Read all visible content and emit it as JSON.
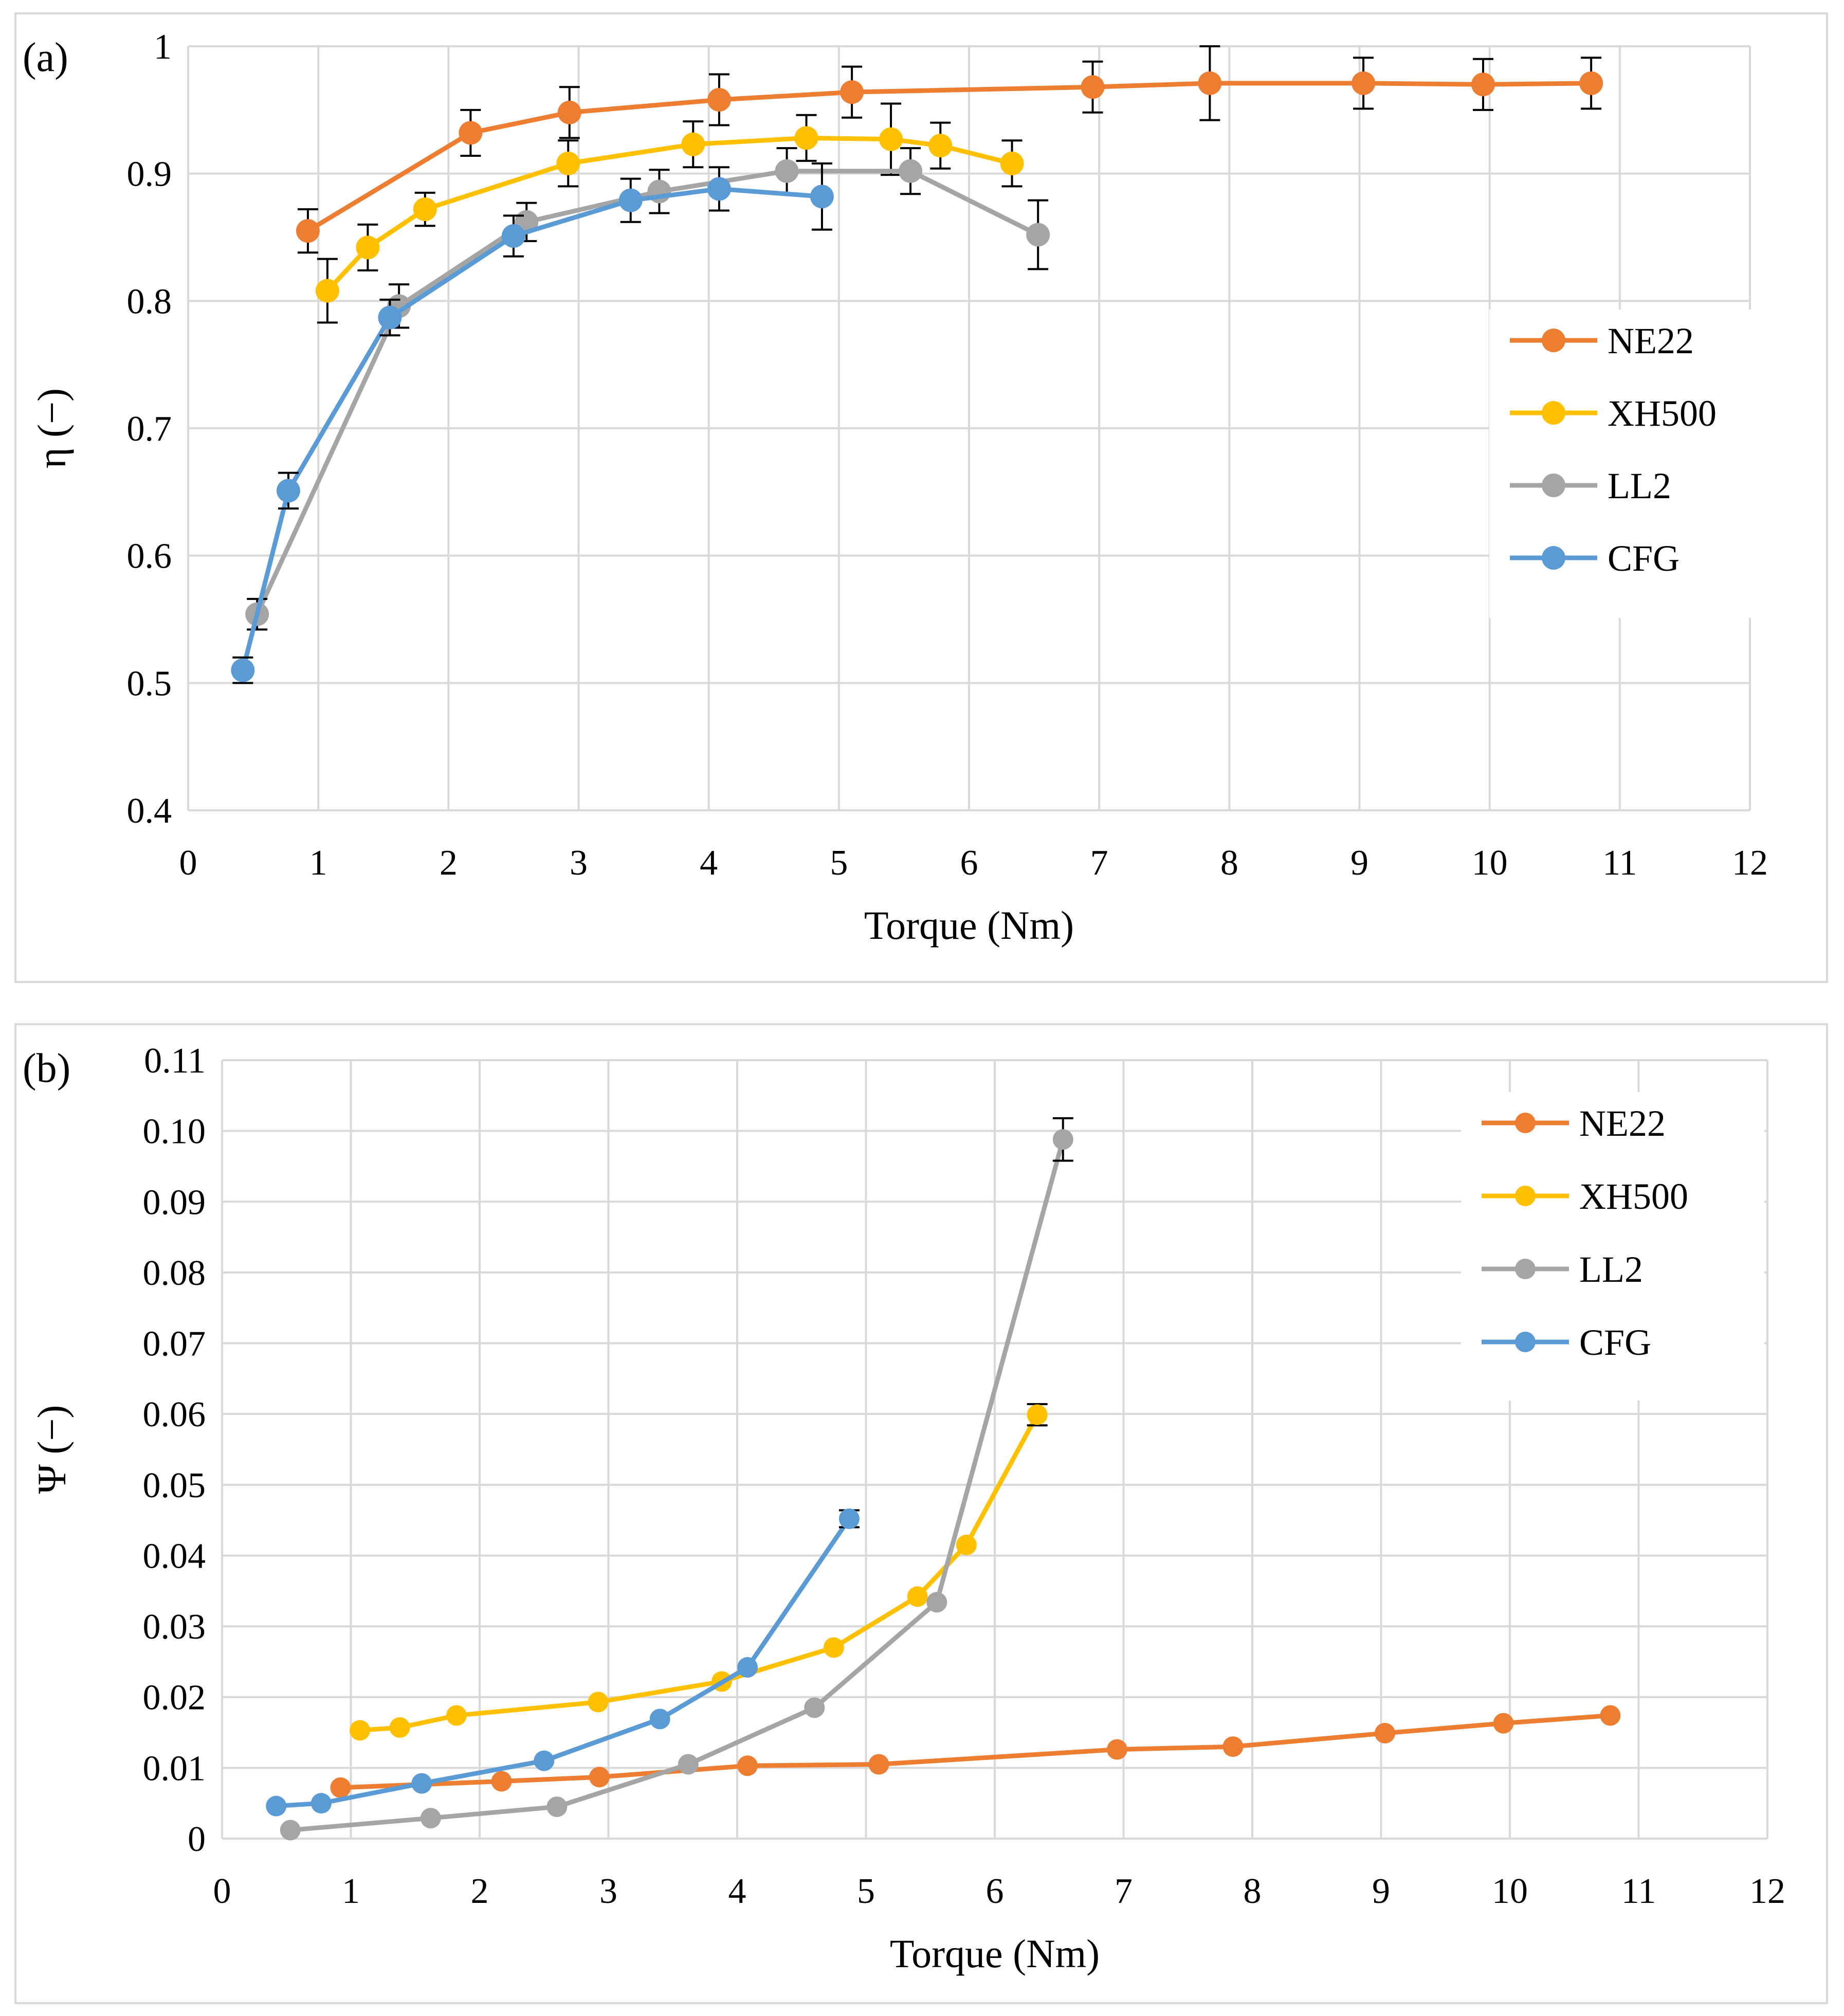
{
  "colors": {
    "NE22": "#ED7D31",
    "XH500": "#FFC000",
    "LL2": "#A5A5A5",
    "CFG": "#5B9BD5",
    "grid": "#d9d9d9"
  },
  "chart_data": [
    {
      "type": "line",
      "panel_label": "(a)",
      "title": "",
      "xlabel": "Torque (Nm)",
      "ylabel": "η (−)",
      "xlim": [
        0,
        12
      ],
      "ylim": [
        0.4,
        1
      ],
      "x_ticks": [
        "0",
        "1",
        "2",
        "3",
        "4",
        "5",
        "6",
        "7",
        "8",
        "9",
        "10",
        "11",
        "12"
      ],
      "y_ticks": [
        "0.4",
        "0.5",
        "0.6",
        "0.7",
        "0.8",
        "0.9",
        "1"
      ],
      "legend": [
        "NE22",
        "XH500",
        "LL2",
        "CFG"
      ],
      "series": [
        {
          "name": "NE22",
          "x": [
            0.92,
            2.17,
            2.93,
            4.08,
            5.1,
            6.95,
            7.85,
            9.03,
            9.95,
            10.78
          ],
          "y": [
            0.855,
            0.932,
            0.948,
            0.958,
            0.964,
            0.968,
            0.971,
            0.971,
            0.97,
            0.971
          ],
          "err": [
            0.017,
            0.018,
            0.02,
            0.02,
            0.02,
            0.02,
            0.029,
            0.02,
            0.02,
            0.02
          ]
        },
        {
          "name": "XH500",
          "x": [
            1.07,
            1.38,
            1.82,
            2.92,
            3.88,
            4.75,
            5.4,
            5.78,
            6.33
          ],
          "y": [
            0.808,
            0.842,
            0.872,
            0.908,
            0.923,
            0.928,
            0.927,
            0.922,
            0.908
          ],
          "err": [
            0.025,
            0.018,
            0.013,
            0.018,
            0.018,
            0.018,
            0.028,
            0.018,
            0.018
          ]
        },
        {
          "name": "LL2",
          "x": [
            0.53,
            1.62,
            2.6,
            3.62,
            4.6,
            5.55,
            6.53
          ],
          "y": [
            0.554,
            0.796,
            0.862,
            0.886,
            0.902,
            0.902,
            0.852
          ],
          "err": [
            0.012,
            0.017,
            0.015,
            0.017,
            0.018,
            0.018,
            0.027
          ]
        },
        {
          "name": "CFG",
          "x": [
            0.42,
            0.77,
            1.55,
            2.5,
            3.4,
            4.08,
            4.87
          ],
          "y": [
            0.51,
            0.651,
            0.787,
            0.851,
            0.879,
            0.888,
            0.882
          ],
          "err": [
            0.01,
            0.014,
            0.014,
            0.016,
            0.017,
            0.017,
            0.026
          ]
        }
      ]
    },
    {
      "type": "line",
      "panel_label": "(b)",
      "title": "",
      "xlabel": "Torque (Nm)",
      "ylabel": "Ψ (−)",
      "xlim": [
        0,
        12
      ],
      "ylim": [
        0,
        0.11
      ],
      "x_ticks": [
        "0",
        "1",
        "2",
        "3",
        "4",
        "5",
        "6",
        "7",
        "8",
        "9",
        "10",
        "11",
        "12"
      ],
      "y_ticks": [
        "0",
        "0.01",
        "0.02",
        "0.03",
        "0.04",
        "0.05",
        "0.06",
        "0.07",
        "0.08",
        "0.09",
        "0.10",
        "0.11"
      ],
      "legend": [
        "NE22",
        "XH500",
        "LL2",
        "CFG"
      ],
      "series": [
        {
          "name": "NE22",
          "x": [
            0.92,
            2.17,
            2.93,
            4.08,
            5.1,
            6.95,
            7.85,
            9.03,
            9.95,
            10.78
          ],
          "y": [
            0.0072,
            0.0081,
            0.0087,
            0.0103,
            0.0105,
            0.0126,
            0.013,
            0.0149,
            0.0163,
            0.0174
          ],
          "err": [
            0,
            0,
            0,
            0,
            0,
            0,
            0,
            0,
            0,
            0
          ]
        },
        {
          "name": "XH500",
          "x": [
            1.07,
            1.38,
            1.82,
            2.92,
            3.88,
            4.75,
            5.4,
            5.78,
            6.33
          ],
          "y": [
            0.0153,
            0.0157,
            0.0174,
            0.0193,
            0.0222,
            0.027,
            0.0342,
            0.0415,
            0.0599
          ],
          "err": [
            0,
            0,
            0,
            0,
            0,
            0,
            0,
            0,
            0.0015
          ]
        },
        {
          "name": "LL2",
          "x": [
            0.53,
            1.62,
            2.6,
            3.62,
            4.6,
            5.55,
            6.53
          ],
          "y": [
            0.0012,
            0.0029,
            0.0045,
            0.0105,
            0.0185,
            0.0334,
            0.0988
          ],
          "err": [
            0,
            0,
            0,
            0,
            0,
            0,
            0.003
          ]
        },
        {
          "name": "CFG",
          "x": [
            0.42,
            0.77,
            1.55,
            2.5,
            3.4,
            4.08,
            4.87
          ],
          "y": [
            0.0046,
            0.005,
            0.0078,
            0.011,
            0.0169,
            0.0242,
            0.0452
          ],
          "err": [
            0,
            0,
            0,
            0,
            0,
            0,
            0.0012
          ]
        }
      ]
    }
  ]
}
